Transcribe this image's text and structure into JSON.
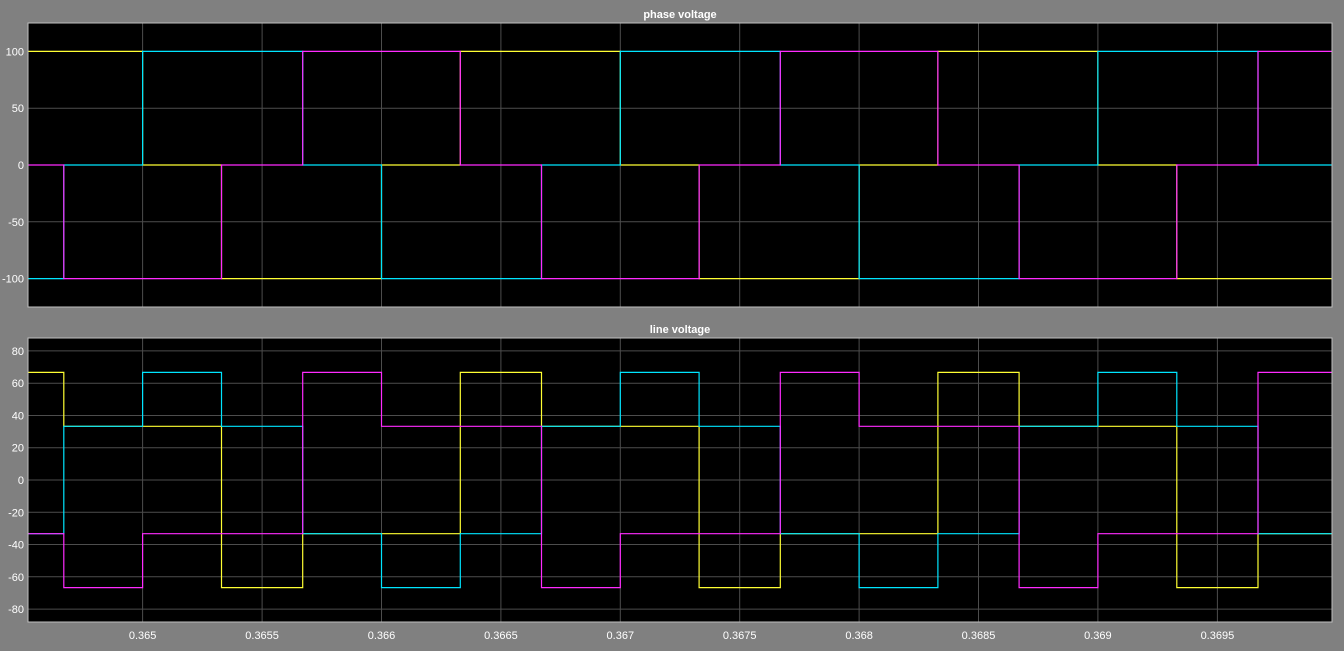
{
  "colors": {
    "background": "#808080",
    "axes_bg": "#000000",
    "grid": "#4d4d4d",
    "text": "#ffffff",
    "series": [
      "#ffff33",
      "#00e5ff",
      "#ff2bff"
    ]
  },
  "chart_data": [
    {
      "type": "line",
      "title": "phase voltage",
      "xlim": [
        0.36452,
        0.36998
      ],
      "ylim": [
        -125,
        125
      ],
      "grid": true,
      "xticks": [
        0.365,
        0.3655,
        0.366,
        0.3665,
        0.367,
        0.3675,
        0.368,
        0.3685,
        0.369,
        0.3695
      ],
      "yticks": [
        -100,
        -50,
        0,
        50,
        100
      ],
      "xtick_labels": [
        "",
        "",
        "",
        "",
        "",
        "",
        "",
        "",
        "",
        ""
      ],
      "ytick_labels": [
        "-100",
        "-50",
        "0",
        "50",
        "100"
      ],
      "series": [
        {
          "color": "#ffff33",
          "x": [
            0.36452,
            0.365,
            0.365,
            0.36533,
            0.36533,
            0.366,
            0.366,
            0.36633,
            0.36633,
            0.367,
            0.367,
            0.36733,
            0.36733,
            0.368,
            0.368,
            0.36833,
            0.36833,
            0.369,
            0.369,
            0.36933,
            0.36933,
            0.36998
          ],
          "y": [
            100,
            100,
            0,
            0,
            -100,
            -100,
            0,
            0,
            100,
            100,
            0,
            0,
            -100,
            -100,
            0,
            0,
            100,
            100,
            0,
            0,
            -100,
            -100
          ]
        },
        {
          "color": "#00e5ff",
          "x": [
            0.36452,
            0.36467,
            0.36467,
            0.365,
            0.365,
            0.36567,
            0.36567,
            0.366,
            0.366,
            0.36667,
            0.36667,
            0.367,
            0.367,
            0.36767,
            0.36767,
            0.368,
            0.368,
            0.36867,
            0.36867,
            0.369,
            0.369,
            0.36967,
            0.36967,
            0.36998
          ],
          "y": [
            -100,
            -100,
            0,
            0,
            100,
            100,
            0,
            0,
            -100,
            -100,
            0,
            0,
            100,
            100,
            0,
            0,
            -100,
            -100,
            0,
            0,
            100,
            100,
            0,
            0
          ]
        },
        {
          "color": "#ff2bff",
          "x": [
            0.36452,
            0.36467,
            0.36467,
            0.36533,
            0.36533,
            0.36567,
            0.36567,
            0.36633,
            0.36633,
            0.36667,
            0.36667,
            0.36733,
            0.36733,
            0.36767,
            0.36767,
            0.36833,
            0.36833,
            0.36867,
            0.36867,
            0.36933,
            0.36933,
            0.36967,
            0.36967,
            0.36998
          ],
          "y": [
            0,
            0,
            -100,
            -100,
            0,
            0,
            100,
            100,
            0,
            0,
            -100,
            -100,
            0,
            0,
            100,
            100,
            0,
            0,
            -100,
            -100,
            0,
            0,
            100,
            100
          ]
        }
      ]
    },
    {
      "type": "line",
      "title": "line voltage",
      "xlim": [
        0.36452,
        0.36998
      ],
      "ylim": [
        -88,
        88
      ],
      "grid": true,
      "xticks": [
        0.365,
        0.3655,
        0.366,
        0.3665,
        0.367,
        0.3675,
        0.368,
        0.3685,
        0.369,
        0.3695
      ],
      "yticks": [
        -80,
        -60,
        -40,
        -20,
        0,
        20,
        40,
        60,
        80
      ],
      "xtick_labels": [
        "0.365",
        "0.3655",
        "0.366",
        "0.3665",
        "0.367",
        "0.3675",
        "0.368",
        "0.3685",
        "0.369",
        "0.3695"
      ],
      "ytick_labels": [
        "-80",
        "-60",
        "-40",
        "-20",
        "0",
        "20",
        "40",
        "60",
        "80"
      ],
      "series": [
        {
          "color": "#ffff33",
          "x": [
            0.36452,
            0.36467,
            0.36467,
            0.36533,
            0.36533,
            0.36567,
            0.36567,
            0.36633,
            0.36633,
            0.36667,
            0.36667,
            0.36733,
            0.36733,
            0.36767,
            0.36767,
            0.36833,
            0.36833,
            0.36867,
            0.36867,
            0.36933,
            0.36933,
            0.36967,
            0.36967,
            0.36998
          ],
          "y": [
            66.7,
            66.7,
            33.3,
            33.3,
            -66.7,
            -66.7,
            -33.3,
            -33.3,
            66.7,
            66.7,
            33.3,
            33.3,
            -66.7,
            -66.7,
            -33.3,
            -33.3,
            66.7,
            66.7,
            33.3,
            33.3,
            -66.7,
            -66.7,
            -33.3,
            -33.3
          ]
        },
        {
          "color": "#00e5ff",
          "x": [
            0.36452,
            0.36467,
            0.36467,
            0.365,
            0.365,
            0.36533,
            0.36533,
            0.36567,
            0.36567,
            0.366,
            0.366,
            0.36633,
            0.36633,
            0.36667,
            0.36667,
            0.367,
            0.367,
            0.36733,
            0.36733,
            0.36767,
            0.36767,
            0.368,
            0.368,
            0.36833,
            0.36833,
            0.36867,
            0.36867,
            0.369,
            0.369,
            0.36933,
            0.36933,
            0.36967,
            0.36967,
            0.36998
          ],
          "y": [
            -33.3,
            -33.3,
            33.3,
            33.3,
            66.7,
            66.7,
            33.3,
            33.3,
            -33.3,
            -33.3,
            -66.7,
            -66.7,
            -33.3,
            -33.3,
            33.3,
            33.3,
            66.7,
            66.7,
            33.3,
            33.3,
            -33.3,
            -33.3,
            -66.7,
            -66.7,
            -33.3,
            -33.3,
            33.3,
            33.3,
            66.7,
            66.7,
            33.3,
            33.3,
            -33.3,
            -33.3
          ]
        },
        {
          "color": "#ff2bff",
          "x": [
            0.36452,
            0.36467,
            0.36467,
            0.365,
            0.365,
            0.36567,
            0.36567,
            0.366,
            0.366,
            0.36667,
            0.36667,
            0.367,
            0.367,
            0.36767,
            0.36767,
            0.368,
            0.368,
            0.36867,
            0.36867,
            0.369,
            0.369,
            0.36967,
            0.36967,
            0.36998
          ],
          "y": [
            -33.3,
            -33.3,
            -66.7,
            -66.7,
            -33.3,
            -33.3,
            66.7,
            66.7,
            33.3,
            33.3,
            -66.7,
            -66.7,
            -33.3,
            -33.3,
            66.7,
            66.7,
            33.3,
            33.3,
            -66.7,
            -66.7,
            -33.3,
            -33.3,
            66.7,
            66.7
          ]
        }
      ]
    }
  ]
}
